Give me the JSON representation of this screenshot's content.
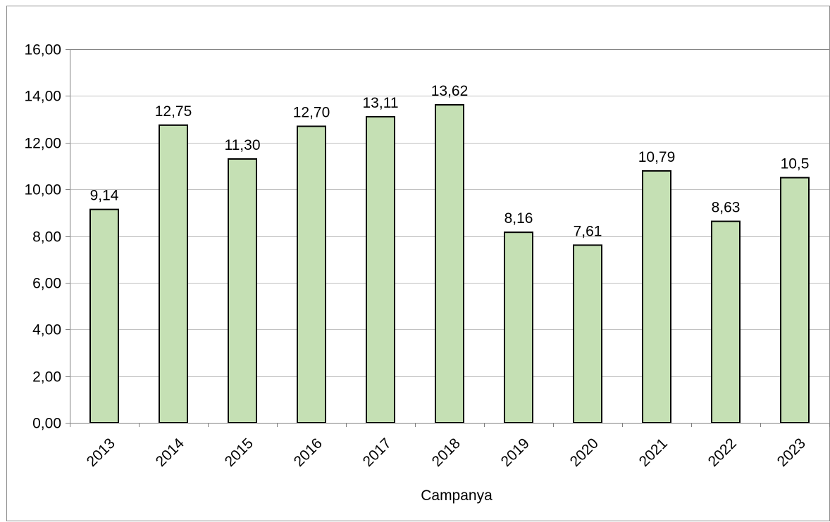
{
  "chart_data": {
    "type": "bar",
    "title": "",
    "xlabel": "Campanya",
    "ylabel": "",
    "ylim": [
      0,
      16
    ],
    "y_ticks": [
      0,
      2,
      4,
      6,
      8,
      10,
      12,
      14,
      16
    ],
    "y_tick_labels": [
      "0,00",
      "2,00",
      "4,00",
      "6,00",
      "8,00",
      "10,00",
      "12,00",
      "14,00",
      "16,00"
    ],
    "categories": [
      "2013",
      "2014",
      "2015",
      "2016",
      "2017",
      "2018",
      "2019",
      "2020",
      "2021",
      "2022",
      "2023"
    ],
    "values": [
      9.14,
      12.75,
      11.3,
      12.7,
      13.11,
      13.62,
      8.16,
      7.61,
      10.79,
      8.63,
      10.5
    ],
    "data_labels": [
      "9,14",
      "12,75",
      "11,30",
      "12,70",
      "13,11",
      "13,62",
      "8,16",
      "7,61",
      "10,79",
      "8,63",
      "10,5"
    ],
    "grid": true,
    "legend": "none",
    "colors": {
      "bar_fill": "#c5e0b4",
      "bar_stroke": "#000000",
      "grid": "#bfbfbf",
      "axis": "#7f7f7f"
    }
  }
}
